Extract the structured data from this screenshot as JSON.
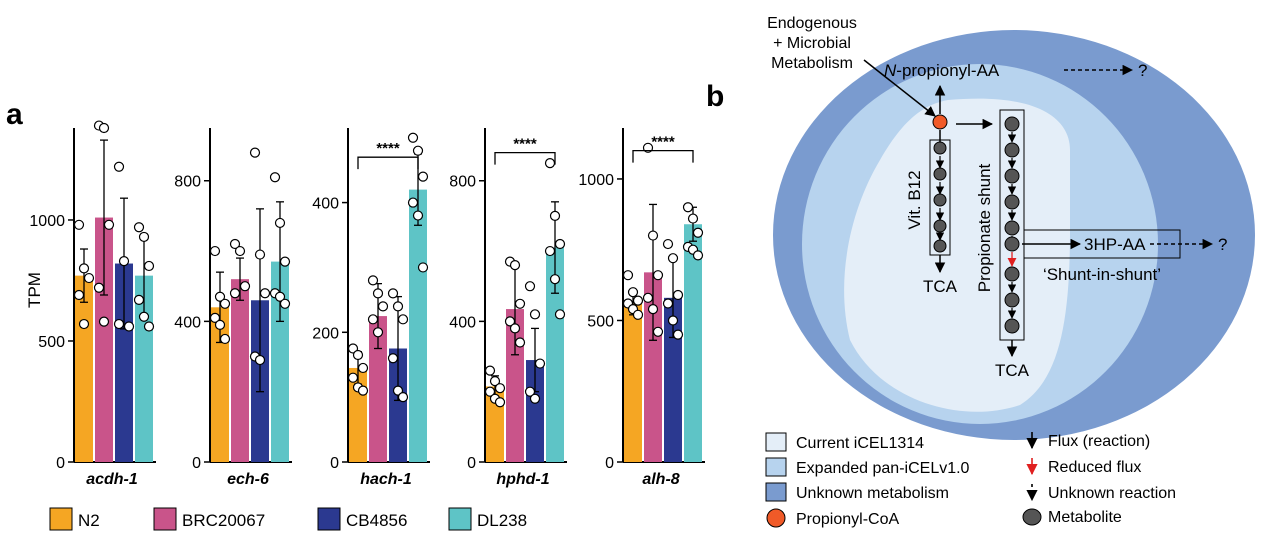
{
  "panel_a_letter": "a",
  "panel_b_letter": "b",
  "colors": {
    "N2": "#F5A623",
    "BRC20067": "#C9548A",
    "CB4856": "#2B3990",
    "DL238": "#5EC4C6",
    "current": "#E4EEF8",
    "expanded": "#B7D3EE",
    "unknown": "#7A9BCF",
    "propionyl": "#F05A28",
    "metabolite": "#555555",
    "reduced_flux": "#E02020"
  },
  "chart_data": {
    "type": "bar",
    "ylabel": "TPM",
    "series_names": [
      "N2",
      "BRC20067",
      "CB4856",
      "DL238"
    ],
    "legend": [
      {
        "name": "N2",
        "color": "#F5A623"
      },
      {
        "name": "BRC20067",
        "color": "#C9548A"
      },
      {
        "name": "CB4856",
        "color": "#2B3990"
      },
      {
        "name": "DL238",
        "color": "#5EC4C6"
      }
    ],
    "legend_position": "bottom",
    "panels": [
      {
        "gene": "acdh-1",
        "ylim": [
          0,
          1380
        ],
        "yticks": [
          0,
          500,
          1000
        ],
        "means": [
          770,
          1010,
          820,
          770
        ],
        "errors": [
          110,
          320,
          270,
          170
        ],
        "points": [
          [
            980,
            800,
            760,
            690,
            570
          ],
          [
            1390,
            1380,
            980,
            720,
            580
          ],
          [
            1220,
            830,
            560,
            570
          ],
          [
            970,
            930,
            810,
            670,
            600,
            560
          ]
        ],
        "significance": null
      },
      {
        "gene": "ech-6",
        "ylim": [
          0,
          950
        ],
        "yticks": [
          0,
          400,
          800
        ],
        "means": [
          440,
          520,
          460,
          570
        ],
        "errors": [
          100,
          60,
          260,
          170
        ],
        "points": [
          [
            600,
            470,
            450,
            410,
            390,
            350
          ],
          [
            620,
            600,
            500,
            480
          ],
          [
            880,
            590,
            480,
            300,
            290
          ],
          [
            810,
            680,
            570,
            480,
            470,
            450
          ]
        ],
        "significance": null
      },
      {
        "gene": "hach-1",
        "ylim": [
          0,
          515
        ],
        "yticks": [
          0,
          200,
          400
        ],
        "means": [
          145,
          225,
          175,
          420
        ],
        "errors": [
          25,
          50,
          80,
          55
        ],
        "points": [
          [
            175,
            165,
            145,
            130,
            115,
            110
          ],
          [
            280,
            260,
            240,
            220,
            200
          ],
          [
            260,
            240,
            220,
            160,
            110,
            100
          ],
          [
            500,
            480,
            440,
            400,
            380,
            300
          ]
        ],
        "significance": {
          "label": "****",
          "from": 0,
          "to": 3,
          "y": 470
        }
      },
      {
        "gene": "hphd-1",
        "ylim": [
          0,
          950
        ],
        "yticks": [
          0,
          400,
          800
        ],
        "means": [
          215,
          435,
          290,
          610
        ],
        "errors": [
          30,
          130,
          90,
          130
        ],
        "points": [
          [
            260,
            230,
            210,
            200,
            180,
            170
          ],
          [
            570,
            560,
            450,
            400,
            380,
            340
          ],
          [
            500,
            420,
            280,
            200,
            180
          ],
          [
            850,
            700,
            620,
            600,
            520,
            420
          ]
        ],
        "significance": {
          "label": "****",
          "from": 0,
          "to": 3,
          "y": 880
        }
      },
      {
        "gene": "alh-8",
        "ylim": [
          0,
          1180
        ],
        "yticks": [
          0,
          500,
          1000
        ],
        "means": [
          560,
          670,
          580,
          840
        ],
        "errors": [
          40,
          240,
          140,
          60
        ],
        "points": [
          [
            660,
            600,
            570,
            560,
            540,
            520
          ],
          [
            1110,
            800,
            660,
            580,
            540,
            460
          ],
          [
            770,
            720,
            590,
            560,
            500,
            450
          ],
          [
            900,
            860,
            810,
            760,
            750,
            730
          ]
        ],
        "significance": {
          "label": "****",
          "from": 0,
          "to": 3,
          "y": 1100
        }
      }
    ]
  },
  "diagram": {
    "inputs_text": [
      "Endogenous",
      "+ Microbial",
      "Metabolism"
    ],
    "n_propionyl_prefix": "N",
    "n_propionyl_suffix": "-propionyl-AA",
    "question_mark_1": "?",
    "question_mark_2": "?",
    "vit_b12": "Vit. B12",
    "propionate_shunt": "Propionate shunt",
    "tca_left": "TCA",
    "tca_bottom": "TCA",
    "hp_aa": "3HP-AA",
    "shunt_in_shunt": "‘Shunt-in-shunt’"
  },
  "diagram_legend": [
    {
      "label": "Current iCEL1314",
      "color": "#E4EEF8"
    },
    {
      "label": "Expanded pan-iCELv1.0",
      "color": "#B7D3EE"
    },
    {
      "label": "Unknown metabolism",
      "color": "#7A9BCF"
    },
    {
      "label": "Propionyl-CoA",
      "color": "#F05A28"
    }
  ],
  "diagram_legend_right": [
    {
      "label": "Flux (reaction)"
    },
    {
      "label": "Reduced flux"
    },
    {
      "label": "Unknown reaction"
    },
    {
      "label": "Metabolite"
    }
  ]
}
